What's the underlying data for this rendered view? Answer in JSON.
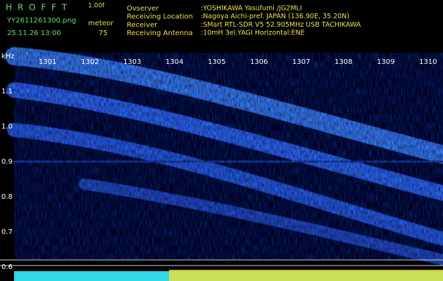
{
  "header": {
    "app": "H R O F F T",
    "version": "1.00f",
    "file": "YY2611261300.png",
    "mode": "meteor",
    "datetime": "25.11.26 13:00",
    "count": "75",
    "info": [
      {
        "label": "Ovserver",
        "value": ":YOSHIKAWA Yasufumi /JG2MLI"
      },
      {
        "label": "Receiving Location",
        "value": ":Nagoya Aichi-pref. JAPAN (136.90E, 35.20N)"
      },
      {
        "label": "Receiver",
        "value": ":SMart RTL-SDR V5 52.905MHz USB TACHIKAWA"
      },
      {
        "label": "Receiving Antenna",
        "value": ":10mH 3el.YAGI Horizontal:ENE"
      }
    ]
  },
  "axis": {
    "unit": "kHz",
    "frequency_labels": [
      "1.1",
      "1.0",
      "0.9",
      "0.8",
      "0.7",
      "0.6"
    ],
    "time_labels": [
      "1301",
      "1302",
      "1303",
      "1304",
      "1305",
      "1306",
      "1307",
      "1308",
      "1309",
      "1310"
    ]
  }
}
